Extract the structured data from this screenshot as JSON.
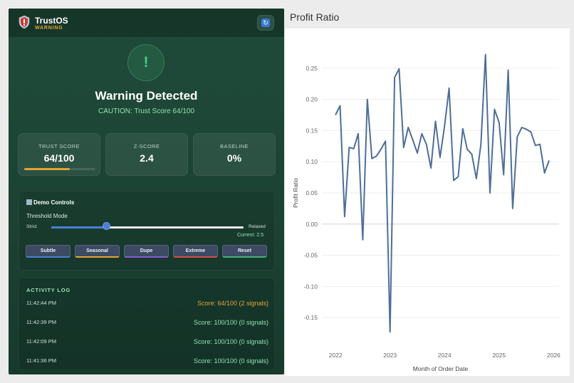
{
  "app": {
    "brand": "TrustOS",
    "status": "WARNING",
    "alert_glyph": "!",
    "alert_title": "Warning Detected",
    "caution": "CAUTION: Trust Score 64/100",
    "icons": [
      "shield-icon",
      "refresh-icon",
      "alert-icon",
      "flag-icon"
    ]
  },
  "stats": [
    {
      "label": "TRUST SCORE",
      "value": "64/100",
      "progress": 0.64
    },
    {
      "label": "Z-SCORE",
      "value": "2.4"
    },
    {
      "label": "BASELINE",
      "value": "0%"
    }
  ],
  "demo": {
    "title": "Demo Controls",
    "threshold_label": "Threshold Mode",
    "min_label": "Strict",
    "max_label": "Relaxed",
    "slider_value": 0.29,
    "current": "Current: 2.5",
    "buttons": [
      {
        "label": "Subtle",
        "accent": "#4a7fd6"
      },
      {
        "label": "Seasonal",
        "accent": "#e6a532"
      },
      {
        "label": "Dupe",
        "accent": "#8a5cd6"
      },
      {
        "label": "Extreme",
        "accent": "#d64a4a"
      },
      {
        "label": "Reset",
        "accent": "#46b07a"
      }
    ]
  },
  "log": {
    "title": "ACTIVITY LOG",
    "rows": [
      {
        "time": "11:42:44 PM",
        "text": "Score: 64/100 (2 signals)",
        "level": "warning"
      },
      {
        "time": "11:42:39 PM",
        "text": "Score: 100/100 (0 signals)",
        "level": "ok"
      },
      {
        "time": "11:42:09 PM",
        "text": "Score: 100/100 (0 signals)",
        "level": "ok"
      },
      {
        "time": "11:41:36 PM",
        "text": "Score: 100/100 (0 signals)",
        "level": "ok"
      }
    ]
  },
  "colors": {
    "panel": "#1d4636",
    "accent_green": "#46d08b",
    "warning": "#e6a532",
    "line": "#4e6e99"
  },
  "chart_data": {
    "type": "line",
    "title": "Profit Ratio",
    "xlabel": "Month of Order Date",
    "ylabel": "Profit Ratio",
    "ylim": [
      -0.2,
      0.3
    ],
    "xlim": [
      2021.75,
      2026.1
    ],
    "x_ticks": [
      "2022",
      "2023",
      "2024",
      "2025",
      "2026"
    ],
    "y_ticks": [
      "0.25",
      "0.20",
      "0.15",
      "0.10",
      "0.05",
      "0.00",
      "-0.05",
      "-0.10",
      "-0.15"
    ],
    "grid": true,
    "series": [
      {
        "values": [
          0.175,
          0.19,
          0.012,
          0.123,
          0.121,
          0.145,
          -0.025,
          0.2,
          0.105,
          0.109,
          0.12,
          0.133,
          -0.173,
          0.235,
          0.249,
          0.123,
          0.155,
          0.135,
          0.114,
          0.145,
          0.128,
          0.09,
          0.165,
          0.107,
          0.157,
          0.218,
          0.07,
          0.076,
          0.153,
          0.12,
          0.112,
          0.073,
          0.128,
          0.272,
          0.05,
          0.184,
          0.163,
          0.079,
          0.247,
          0.025,
          0.14,
          0.155,
          0.152,
          0.148,
          0.126,
          0.128,
          0.082,
          0.102
        ]
      }
    ],
    "x_start": "2022-01",
    "x_step": "1 month"
  }
}
